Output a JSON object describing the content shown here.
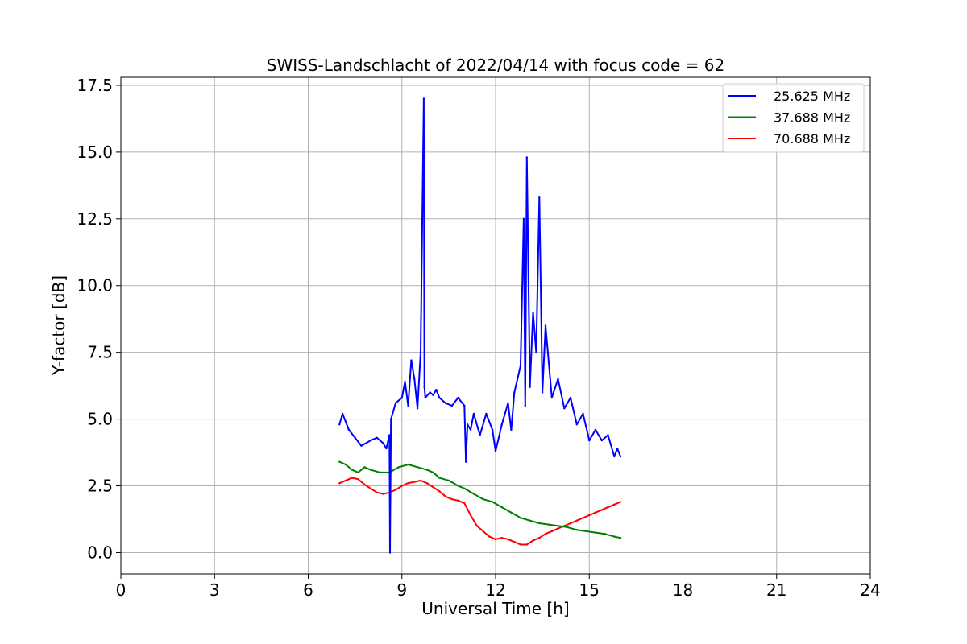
{
  "chart_data": {
    "type": "line",
    "title": "SWISS-Landschlacht of 2022/04/14 with focus code = 62",
    "xlabel": "Universal Time [h]",
    "ylabel": "Y-factor [dB]",
    "xlim": [
      0,
      24
    ],
    "ylim": [
      -0.8,
      17.8
    ],
    "x_ticks": [
      0,
      3,
      6,
      9,
      12,
      15,
      18,
      21,
      24
    ],
    "x_tick_labels": [
      "0",
      "3",
      "6",
      "9",
      "12",
      "15",
      "18",
      "21",
      "24"
    ],
    "y_ticks": [
      0,
      2.5,
      5,
      7.5,
      10,
      12.5,
      15,
      17.5
    ],
    "y_tick_labels": [
      "0.0",
      "2.5",
      "5.0",
      "7.5",
      "10.0",
      "12.5",
      "15.0",
      "17.5"
    ],
    "grid": true,
    "legend_position": "top-right",
    "series": [
      {
        "name": "25.625 MHz",
        "color": "#0000ff",
        "x": [
          7.0,
          7.1,
          7.3,
          7.5,
          7.7,
          8.0,
          8.2,
          8.4,
          8.5,
          8.6,
          8.62,
          8.65,
          8.8,
          9.0,
          9.1,
          9.2,
          9.3,
          9.4,
          9.5,
          9.6,
          9.7,
          9.72,
          9.75,
          9.9,
          10.0,
          10.1,
          10.2,
          10.4,
          10.6,
          10.8,
          11.0,
          11.05,
          11.1,
          11.2,
          11.3,
          11.5,
          11.7,
          11.9,
          12.0,
          12.2,
          12.4,
          12.5,
          12.6,
          12.8,
          12.9,
          12.95,
          13.0,
          13.1,
          13.2,
          13.3,
          13.4,
          13.5,
          13.6,
          13.8,
          14.0,
          14.2,
          14.4,
          14.6,
          14.8,
          15.0,
          15.2,
          15.4,
          15.6,
          15.8,
          15.9,
          16.0
        ],
        "y": [
          4.8,
          5.2,
          4.6,
          4.3,
          4.0,
          4.2,
          4.3,
          4.1,
          3.9,
          4.4,
          0.0,
          5.0,
          5.6,
          5.8,
          6.4,
          5.5,
          7.2,
          6.5,
          5.4,
          7.5,
          17.0,
          6.2,
          5.8,
          6.0,
          5.9,
          6.1,
          5.8,
          5.6,
          5.5,
          5.8,
          5.5,
          3.4,
          4.8,
          4.6,
          5.2,
          4.4,
          5.2,
          4.6,
          3.8,
          4.8,
          5.6,
          4.6,
          6.0,
          7.0,
          12.5,
          5.5,
          14.8,
          6.2,
          9.0,
          7.5,
          13.3,
          6.0,
          8.5,
          5.8,
          6.5,
          5.4,
          5.8,
          4.8,
          5.2,
          4.2,
          4.6,
          4.2,
          4.4,
          3.6,
          3.9,
          3.6
        ]
      },
      {
        "name": "37.688 MHz",
        "color": "#008000",
        "x": [
          7.0,
          7.2,
          7.4,
          7.6,
          7.8,
          8.0,
          8.3,
          8.6,
          8.9,
          9.2,
          9.5,
          9.8,
          10.0,
          10.2,
          10.5,
          10.8,
          11.0,
          11.3,
          11.6,
          11.9,
          12.2,
          12.5,
          12.8,
          13.1,
          13.4,
          13.7,
          14.0,
          14.3,
          14.6,
          14.9,
          15.2,
          15.5,
          15.8,
          16.0
        ],
        "y": [
          3.4,
          3.3,
          3.1,
          3.0,
          3.2,
          3.1,
          3.0,
          3.0,
          3.2,
          3.3,
          3.2,
          3.1,
          3.0,
          2.8,
          2.7,
          2.5,
          2.4,
          2.2,
          2.0,
          1.9,
          1.7,
          1.5,
          1.3,
          1.2,
          1.1,
          1.05,
          1.0,
          0.95,
          0.85,
          0.8,
          0.75,
          0.7,
          0.6,
          0.55
        ]
      },
      {
        "name": "70.688 MHz",
        "color": "#ff0000",
        "x": [
          7.0,
          7.2,
          7.4,
          7.6,
          7.8,
          8.0,
          8.2,
          8.4,
          8.6,
          8.8,
          9.0,
          9.2,
          9.4,
          9.6,
          9.8,
          10.0,
          10.2,
          10.4,
          10.6,
          10.8,
          11.0,
          11.2,
          11.4,
          11.6,
          11.8,
          12.0,
          12.2,
          12.4,
          12.6,
          12.8,
          13.0,
          13.2,
          13.4,
          13.6,
          13.8,
          14.0,
          14.2,
          14.4,
          14.6,
          14.8,
          15.0,
          15.2,
          15.4,
          15.6,
          15.8,
          16.0
        ],
        "y": [
          2.6,
          2.7,
          2.8,
          2.75,
          2.55,
          2.4,
          2.25,
          2.2,
          2.25,
          2.35,
          2.5,
          2.6,
          2.65,
          2.7,
          2.6,
          2.45,
          2.3,
          2.1,
          2.0,
          1.95,
          1.85,
          1.4,
          1.0,
          0.8,
          0.6,
          0.5,
          0.55,
          0.5,
          0.4,
          0.3,
          0.3,
          0.45,
          0.55,
          0.7,
          0.8,
          0.9,
          1.0,
          1.1,
          1.2,
          1.3,
          1.4,
          1.5,
          1.6,
          1.7,
          1.8,
          1.9
        ]
      }
    ]
  }
}
